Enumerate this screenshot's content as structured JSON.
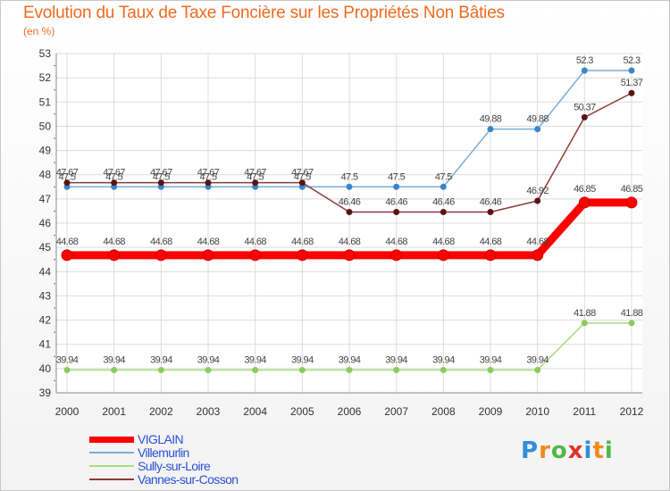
{
  "title": "Evolution du Taux de Taxe Foncière sur les Propriétés Non Bâties",
  "unit_label": "(en %)",
  "brand": "Proxiti",
  "brand_colors": [
    "#2f8fd8",
    "#f08a1c",
    "#4fb848",
    "#e0322a",
    "#2f8fd8",
    "#f08a1c",
    "#4fb848"
  ],
  "chart_data": {
    "type": "line",
    "title": "Evolution du Taux de Taxe Foncière sur les Propriétés Non Bâties",
    "xlabel": "",
    "ylabel": "(en %)",
    "ylim": [
      39,
      53
    ],
    "yticks": [
      39,
      40,
      41,
      42,
      43,
      44,
      45,
      46,
      47,
      48,
      49,
      50,
      51,
      52,
      53
    ],
    "grid": true,
    "categories": [
      "2000",
      "2001",
      "2002",
      "2003",
      "2004",
      "2005",
      "2006",
      "2007",
      "2008",
      "2009",
      "2010",
      "2011",
      "2012"
    ],
    "series": [
      {
        "name": "VIGLAIN",
        "color": "#ff0000",
        "values": [
          44.68,
          44.68,
          44.68,
          44.68,
          44.68,
          44.68,
          44.68,
          44.68,
          44.68,
          44.68,
          44.68,
          46.85,
          46.85
        ],
        "labels": [
          "44.68",
          "44.68",
          "44.68",
          "44.68",
          "44.68",
          "44.68",
          "44.68",
          "44.68",
          "44.68",
          "44.68",
          "44.68",
          "46.85",
          "46.85"
        ]
      },
      {
        "name": "Villemurlin",
        "color": "#7aaed6",
        "marker": "#3a86c8",
        "values": [
          47.5,
          47.5,
          47.5,
          47.5,
          47.5,
          47.5,
          47.5,
          47.5,
          47.5,
          49.88,
          49.88,
          52.3,
          52.3
        ],
        "labels": [
          "47.5",
          "47.5",
          "47.5",
          "47.5",
          "47.5",
          "47.5",
          "47.5",
          "47.5",
          "47.5",
          "49.88",
          "49.88",
          "52.3",
          "52.3"
        ]
      },
      {
        "name": "Sully-sur-Loire",
        "color": "#a8dc7c",
        "marker": "#8acc5a",
        "values": [
          39.94,
          39.94,
          39.94,
          39.94,
          39.94,
          39.94,
          39.94,
          39.94,
          39.94,
          39.94,
          39.94,
          41.88,
          41.88
        ],
        "labels": [
          "39.94",
          "39.94",
          "39.94",
          "39.94",
          "39.94",
          "39.94",
          "39.94",
          "39.94",
          "39.94",
          "39.94",
          "39.94",
          "41.88",
          "41.88"
        ]
      },
      {
        "name": "Vannes-sur-Cosson",
        "color": "#8c3a3a",
        "marker": "#5a1414",
        "values": [
          47.67,
          47.67,
          47.67,
          47.67,
          47.67,
          47.67,
          46.46,
          46.46,
          46.46,
          46.46,
          46.92,
          50.37,
          51.37
        ],
        "labels": [
          "47.67",
          "47.67",
          "47.67",
          "47.67",
          "47.67",
          "47.67",
          "46.46",
          "46.46",
          "46.46",
          "46.46",
          "46.92",
          "50.37",
          "51.37"
        ]
      }
    ]
  }
}
